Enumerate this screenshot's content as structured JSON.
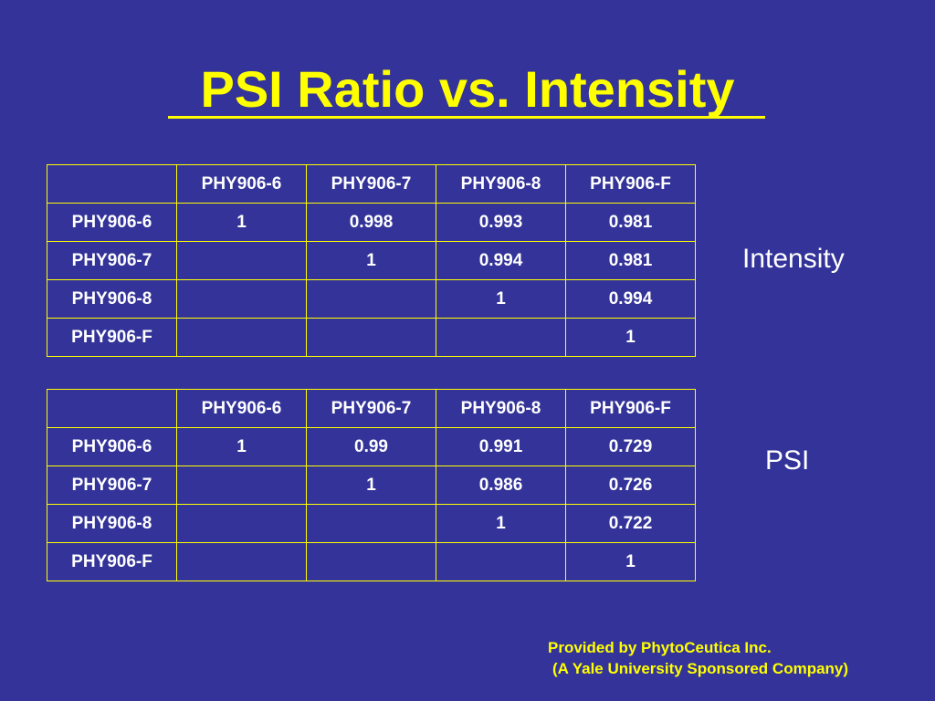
{
  "slide": {
    "title": "PSI Ratio vs. Intensity",
    "colors": {
      "background": "#333399",
      "title": "#ffff00",
      "grid_lines": "#ffff00",
      "table_text": "#ffffff",
      "footer_text": "#ffff00"
    }
  },
  "tables": [
    {
      "label": "Intensity",
      "header": [
        "",
        "PHY906-6",
        "PHY906-7",
        "PHY906-8",
        "PHY906-F"
      ],
      "rows": [
        [
          "PHY906-6",
          "1",
          "0.998",
          "0.993",
          "0.981"
        ],
        [
          "PHY906-7",
          "",
          "1",
          "0.994",
          "0.981"
        ],
        [
          "PHY906-8",
          "",
          "",
          "1",
          "0.994"
        ],
        [
          "PHY906-F",
          "",
          "",
          "",
          "1"
        ]
      ]
    },
    {
      "label": "PSI",
      "header": [
        "",
        "PHY906-6",
        "PHY906-7",
        "PHY906-8",
        "PHY906-F"
      ],
      "rows": [
        [
          "PHY906-6",
          "1",
          "0.99",
          "0.991",
          "0.729"
        ],
        [
          "PHY906-7",
          "",
          "1",
          "0.986",
          "0.726"
        ],
        [
          "PHY906-8",
          "",
          "",
          "1",
          "0.722"
        ],
        [
          "PHY906-F",
          "",
          "",
          "",
          "1"
        ]
      ]
    }
  ],
  "footer": {
    "line1": "Provided by PhytoCeutica Inc.",
    "line2": "(A Yale University Sponsored Company)"
  }
}
